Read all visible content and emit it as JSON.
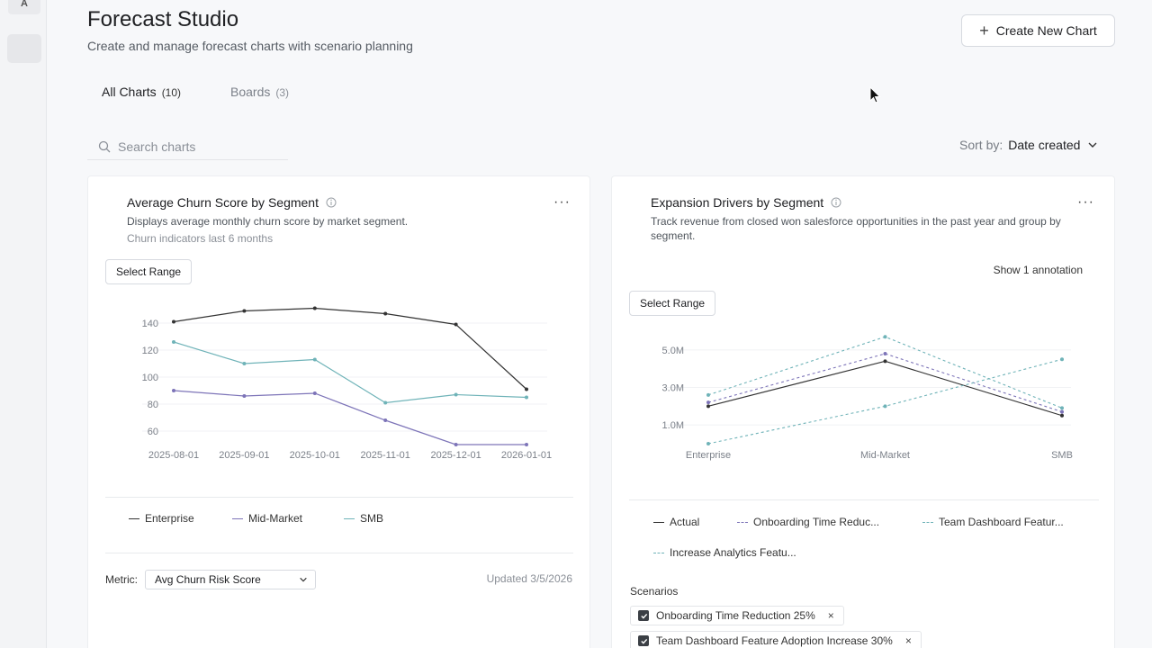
{
  "rail": {
    "avatar_letter": "A"
  },
  "header": {
    "title": "Forecast Studio",
    "subtitle": "Create and manage forecast charts with scenario planning",
    "create_button_label": "Create New Chart"
  },
  "tabs": [
    {
      "label": "All Charts",
      "count": "(10)"
    },
    {
      "label": "Boards",
      "count": "(3)"
    }
  ],
  "search": {
    "placeholder": "Search charts"
  },
  "sort": {
    "label": "Sort by:",
    "value": "Date created"
  },
  "colors": {
    "enterprise": "#333333",
    "mid_market": "#7d74b8",
    "smb": "#6fb3b8",
    "scenario_teal": "#6fb3b8",
    "scenario_purple": "#7d74b8"
  },
  "cards": {
    "churn": {
      "title": "Average Churn Score by Segment",
      "desc": "Displays average monthly churn score by market segment.",
      "desc2": "Churn indicators last 6 months",
      "range_label": "Select Range",
      "metric_label": "Metric:",
      "metric_value": "Avg Churn Risk Score",
      "updated": "Updated 3/5/2026"
    },
    "expansion": {
      "title": "Expansion Drivers by Segment",
      "desc": "Track revenue from closed won salesforce opportunities in the past year and group by segment.",
      "annotation_link": "Show 1 annotation",
      "range_label": "Select Range",
      "scenarios_title": "Scenarios",
      "scenarios": [
        "Onboarding Time Reduction 25%",
        "Team Dashboard Feature Adoption Increase 30%"
      ]
    }
  },
  "chart_data": [
    {
      "type": "line",
      "title": "Average Churn Score by Segment",
      "x": [
        "2025-08-01",
        "2025-09-01",
        "2025-10-01",
        "2025-11-01",
        "2025-12-01",
        "2026-01-01"
      ],
      "ylim": [
        50,
        150
      ],
      "yticks": [
        "60",
        "80",
        "100",
        "120",
        "140"
      ],
      "series": [
        {
          "name": "Enterprise",
          "values": [
            141,
            149,
            151,
            147,
            139,
            91
          ]
        },
        {
          "name": "Mid-Market",
          "values": [
            90,
            86,
            88,
            68,
            50,
            50
          ]
        },
        {
          "name": "SMB",
          "values": [
            126,
            110,
            113,
            81,
            87,
            85
          ]
        }
      ]
    },
    {
      "type": "line",
      "title": "Expansion Drivers by Segment",
      "categories": [
        "Enterprise",
        "Mid-Market",
        "SMB"
      ],
      "ylim": [
        0,
        6000000
      ],
      "yticks": [
        "1.0M",
        "3.0M",
        "5.0M"
      ],
      "series": [
        {
          "name": "Actual",
          "values": [
            2000000,
            4400000,
            1500000
          ],
          "dashed": false
        },
        {
          "name": "Onboarding Time Reduc...",
          "values": [
            2200000,
            4800000,
            1700000
          ],
          "dashed": true
        },
        {
          "name": "Team Dashboard Featur...",
          "values": [
            2600000,
            5700000,
            1900000
          ],
          "dashed": true
        },
        {
          "name": "Increase Analytics Featu...",
          "values": [
            0,
            2000000,
            4500000
          ],
          "dashed": true
        }
      ]
    }
  ]
}
